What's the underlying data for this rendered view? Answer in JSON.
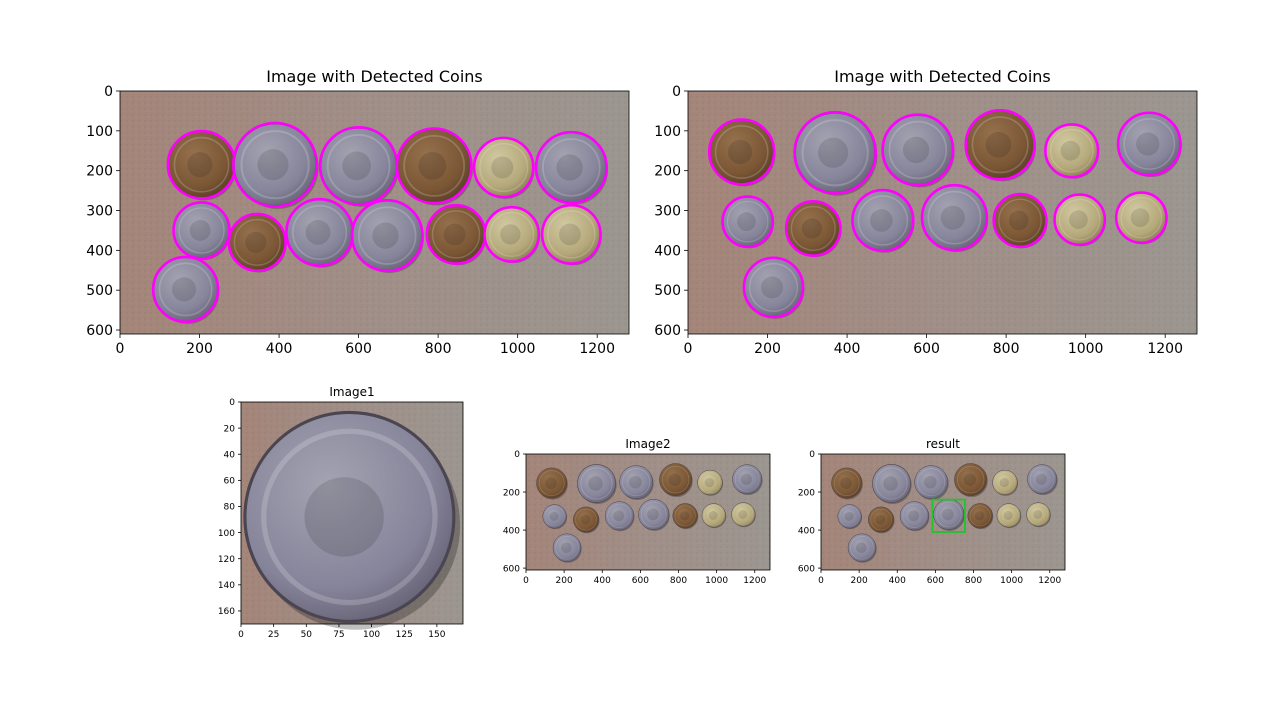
{
  "colors": {
    "background": "#ffffff",
    "axis": "#000000",
    "detected_circle": "#ff00ff",
    "match_box": "#22c22a",
    "surface": "#9b8c84",
    "coin_silver": "#8c8a98",
    "coin_copper": "#7a5634",
    "coin_brass": "#b8aa7a"
  },
  "chart_data": [
    {
      "type": "image",
      "title": "Image with Detected Coins",
      "xlim": [
        0,
        1280
      ],
      "ylim": [
        610,
        0
      ],
      "xticks": [
        "0",
        "200",
        "400",
        "600",
        "800",
        "1000",
        "1200"
      ],
      "yticks": [
        "0",
        "100",
        "200",
        "300",
        "400",
        "500",
        "600"
      ],
      "coins": [
        {
          "x": 205,
          "y": 185,
          "r": 83,
          "tone": "copper"
        },
        {
          "x": 390,
          "y": 185,
          "r": 103,
          "tone": "silver"
        },
        {
          "x": 600,
          "y": 188,
          "r": 95,
          "tone": "silver"
        },
        {
          "x": 790,
          "y": 188,
          "r": 92,
          "tone": "copper"
        },
        {
          "x": 965,
          "y": 192,
          "r": 73,
          "tone": "brass"
        },
        {
          "x": 1135,
          "y": 192,
          "r": 87,
          "tone": "silver"
        },
        {
          "x": 205,
          "y": 350,
          "r": 69,
          "tone": "silver"
        },
        {
          "x": 345,
          "y": 380,
          "r": 70,
          "tone": "copper"
        },
        {
          "x": 502,
          "y": 355,
          "r": 82,
          "tone": "silver"
        },
        {
          "x": 672,
          "y": 363,
          "r": 87,
          "tone": "silver"
        },
        {
          "x": 845,
          "y": 360,
          "r": 72,
          "tone": "copper"
        },
        {
          "x": 985,
          "y": 360,
          "r": 67,
          "tone": "brass"
        },
        {
          "x": 1135,
          "y": 360,
          "r": 72,
          "tone": "brass"
        },
        {
          "x": 165,
          "y": 498,
          "r": 80,
          "tone": "silver"
        }
      ]
    },
    {
      "type": "image",
      "title": "Image with Detected Coins",
      "xlim": [
        0,
        1280
      ],
      "ylim": [
        610,
        0
      ],
      "xticks": [
        "0",
        "200",
        "400",
        "600",
        "800",
        "1000",
        "1200"
      ],
      "yticks": [
        "0",
        "100",
        "200",
        "300",
        "400",
        "500",
        "600"
      ],
      "coins": [
        {
          "x": 135,
          "y": 153,
          "r": 80,
          "tone": "copper"
        },
        {
          "x": 370,
          "y": 155,
          "r": 100,
          "tone": "silver"
        },
        {
          "x": 578,
          "y": 148,
          "r": 87,
          "tone": "silver"
        },
        {
          "x": 785,
          "y": 135,
          "r": 85,
          "tone": "copper"
        },
        {
          "x": 965,
          "y": 150,
          "r": 65,
          "tone": "brass"
        },
        {
          "x": 1160,
          "y": 133,
          "r": 77,
          "tone": "silver"
        },
        {
          "x": 150,
          "y": 328,
          "r": 62,
          "tone": "silver"
        },
        {
          "x": 315,
          "y": 345,
          "r": 67,
          "tone": "copper"
        },
        {
          "x": 490,
          "y": 325,
          "r": 75,
          "tone": "silver"
        },
        {
          "x": 670,
          "y": 318,
          "r": 80,
          "tone": "silver"
        },
        {
          "x": 835,
          "y": 325,
          "r": 65,
          "tone": "copper"
        },
        {
          "x": 985,
          "y": 323,
          "r": 62,
          "tone": "brass"
        },
        {
          "x": 1140,
          "y": 318,
          "r": 62,
          "tone": "brass"
        },
        {
          "x": 215,
          "y": 493,
          "r": 73,
          "tone": "silver"
        }
      ]
    },
    {
      "type": "image",
      "title": "Image1",
      "xlim": [
        0,
        170
      ],
      "ylim": [
        170,
        0
      ],
      "xticks": [
        "0",
        "25",
        "50",
        "75",
        "100",
        "125",
        "150"
      ],
      "yticks": [
        "0",
        "20",
        "40",
        "60",
        "80",
        "100",
        "120",
        "140",
        "160"
      ],
      "coins": [
        {
          "x": 83,
          "y": 88,
          "r": 80,
          "tone": "silver"
        }
      ]
    },
    {
      "type": "image",
      "title": "Image2",
      "xlim": [
        0,
        1280
      ],
      "ylim": [
        610,
        0
      ],
      "xticks": [
        "0",
        "200",
        "400",
        "600",
        "800",
        "1000",
        "1200"
      ],
      "yticks": [
        "0",
        "200",
        "400",
        "600"
      ],
      "coins": [
        {
          "x": 135,
          "y": 153,
          "r": 80,
          "tone": "copper"
        },
        {
          "x": 370,
          "y": 155,
          "r": 100,
          "tone": "silver"
        },
        {
          "x": 578,
          "y": 148,
          "r": 87,
          "tone": "silver"
        },
        {
          "x": 785,
          "y": 135,
          "r": 85,
          "tone": "copper"
        },
        {
          "x": 965,
          "y": 150,
          "r": 65,
          "tone": "brass"
        },
        {
          "x": 1160,
          "y": 133,
          "r": 77,
          "tone": "silver"
        },
        {
          "x": 150,
          "y": 328,
          "r": 62,
          "tone": "silver"
        },
        {
          "x": 315,
          "y": 345,
          "r": 67,
          "tone": "copper"
        },
        {
          "x": 490,
          "y": 325,
          "r": 75,
          "tone": "silver"
        },
        {
          "x": 670,
          "y": 318,
          "r": 80,
          "tone": "silver"
        },
        {
          "x": 835,
          "y": 325,
          "r": 65,
          "tone": "copper"
        },
        {
          "x": 985,
          "y": 323,
          "r": 62,
          "tone": "brass"
        },
        {
          "x": 1140,
          "y": 318,
          "r": 62,
          "tone": "brass"
        },
        {
          "x": 215,
          "y": 493,
          "r": 73,
          "tone": "silver"
        }
      ]
    },
    {
      "type": "image",
      "title": "result",
      "xlim": [
        0,
        1280
      ],
      "ylim": [
        610,
        0
      ],
      "xticks": [
        "0",
        "200",
        "400",
        "600",
        "800",
        "1000",
        "1200"
      ],
      "yticks": [
        "0",
        "200",
        "400",
        "600"
      ],
      "coins": [
        {
          "x": 135,
          "y": 153,
          "r": 80,
          "tone": "copper"
        },
        {
          "x": 370,
          "y": 155,
          "r": 100,
          "tone": "silver"
        },
        {
          "x": 578,
          "y": 148,
          "r": 87,
          "tone": "silver"
        },
        {
          "x": 785,
          "y": 135,
          "r": 85,
          "tone": "copper"
        },
        {
          "x": 965,
          "y": 150,
          "r": 65,
          "tone": "brass"
        },
        {
          "x": 1160,
          "y": 133,
          "r": 77,
          "tone": "silver"
        },
        {
          "x": 150,
          "y": 328,
          "r": 62,
          "tone": "silver"
        },
        {
          "x": 315,
          "y": 345,
          "r": 67,
          "tone": "copper"
        },
        {
          "x": 490,
          "y": 325,
          "r": 75,
          "tone": "silver"
        },
        {
          "x": 670,
          "y": 318,
          "r": 80,
          "tone": "silver"
        },
        {
          "x": 835,
          "y": 325,
          "r": 65,
          "tone": "copper"
        },
        {
          "x": 985,
          "y": 323,
          "r": 62,
          "tone": "brass"
        },
        {
          "x": 1140,
          "y": 318,
          "r": 62,
          "tone": "brass"
        },
        {
          "x": 215,
          "y": 493,
          "r": 73,
          "tone": "silver"
        }
      ],
      "match_box": {
        "x0": 585,
        "y0": 240,
        "x1": 755,
        "y1": 410
      }
    }
  ]
}
